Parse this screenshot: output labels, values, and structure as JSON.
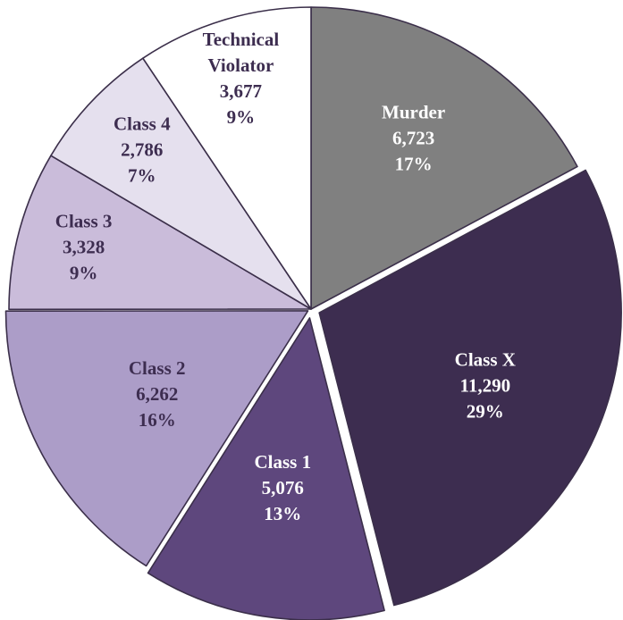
{
  "chart_data": {
    "type": "pie",
    "slices": [
      {
        "label": [
          "Murder"
        ],
        "value": 6723,
        "value_text": "6,723",
        "percent": "17%",
        "color": "#808080",
        "text_color": "#ffffff"
      },
      {
        "label": [
          "Class X"
        ],
        "value": 11290,
        "value_text": "11,290",
        "percent": "29%",
        "color": "#3d2d50",
        "text_color": "#ffffff"
      },
      {
        "label": [
          "Class 1"
        ],
        "value": 5076,
        "value_text": "5,076",
        "percent": "13%",
        "color": "#5e477d",
        "text_color": "#ffffff"
      },
      {
        "label": [
          "Class 2"
        ],
        "value": 6262,
        "value_text": "6,262",
        "percent": "16%",
        "color": "#ac9dc8",
        "text_color": "#3d2d50"
      },
      {
        "label": [
          "Class 3"
        ],
        "value": 3328,
        "value_text": "3,328",
        "percent": "9%",
        "color": "#cabcda",
        "text_color": "#3d2d50"
      },
      {
        "label": [
          "Class 4"
        ],
        "value": 2786,
        "value_text": "2,786",
        "percent": "7%",
        "color": "#e5e0ee",
        "text_color": "#3d2d50"
      },
      {
        "label": [
          "Technical",
          "Violator"
        ],
        "value": 3677,
        "value_text": "3,677",
        "percent": "9%",
        "color": "#ffffff",
        "text_color": "#3d2d50"
      }
    ]
  }
}
